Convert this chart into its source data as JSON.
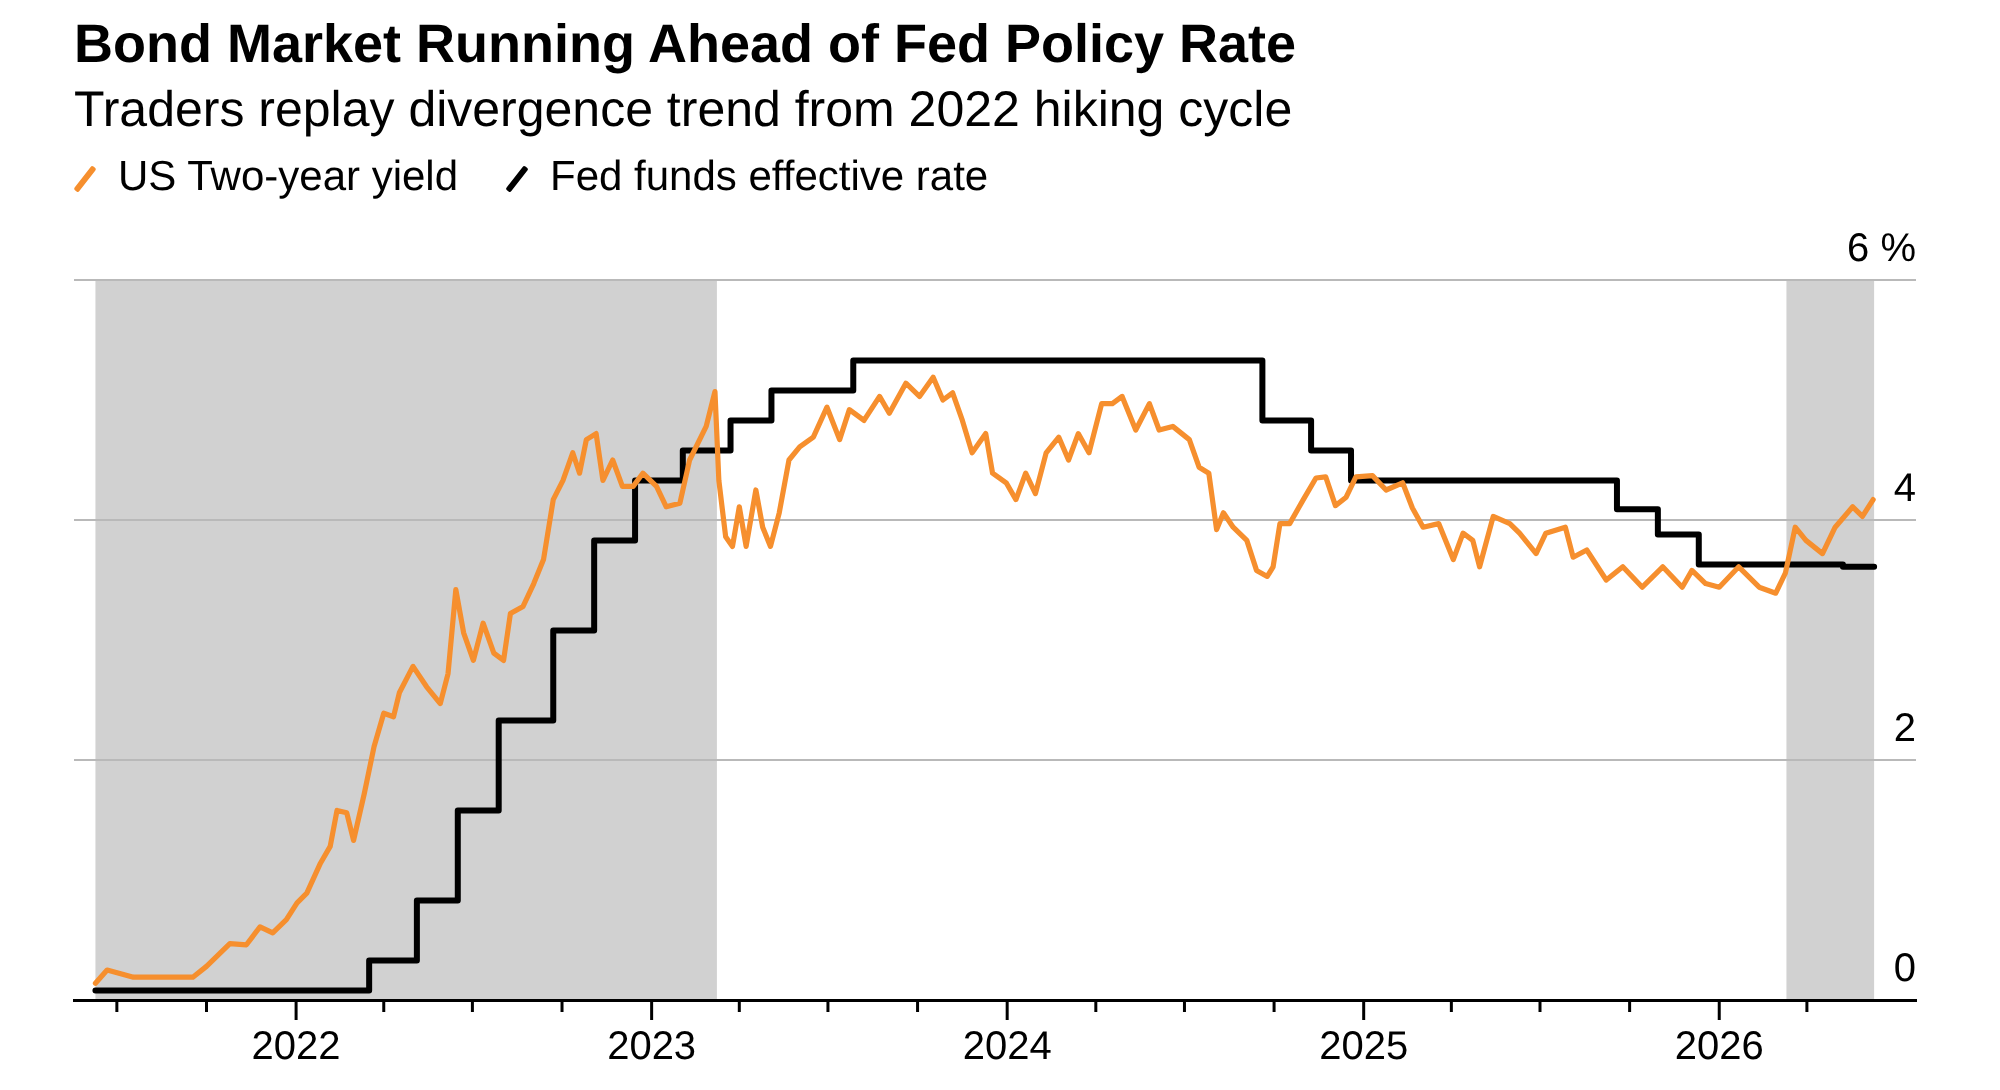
{
  "chart_data": {
    "type": "line",
    "title": "Bond Market Running Ahead of Fed Policy Rate",
    "subtitle": "Traders replay divergence trend from 2022 hiking cycle",
    "xlim": [
      "2021-05-18",
      "2026-07-22"
    ],
    "xticks": [
      {
        "value": "2021-07-01",
        "label": null
      },
      {
        "value": "2021-10-01",
        "label": null
      },
      "2022",
      {
        "value": "2022-04-01",
        "label": null
      },
      {
        "value": "2022-07-01",
        "label": null
      },
      {
        "value": "2022-10-01",
        "label": null
      },
      "2023",
      {
        "value": "2023-04-01",
        "label": null
      },
      {
        "value": "2023-07-01",
        "label": null
      },
      {
        "value": "2023-10-01",
        "label": null
      },
      "2024",
      {
        "value": "2024-04-01",
        "label": null
      },
      {
        "value": "2024-07-01",
        "label": null
      },
      {
        "value": "2024-10-01",
        "label": null
      },
      "2025",
      {
        "value": "2025-04-01",
        "label": null
      },
      {
        "value": "2025-07-01",
        "label": null
      },
      {
        "value": "2025-10-01",
        "label": null
      },
      "2026",
      {
        "value": "2026-04-01",
        "label": null
      }
    ],
    "ylim": [
      0,
      6
    ],
    "yticks": [
      0,
      2,
      4,
      {
        "value": 6,
        "label": "6 %"
      }
    ],
    "grid": "y",
    "legend": "top left",
    "bands": [
      {
        "axis": "x",
        "from": "2021-06-09",
        "to": "2023-03-09",
        "color": "#d1d1d1"
      },
      {
        "axis": "x",
        "from": "2026-03-11",
        "to": "2026-06-09",
        "color": "#d1d1d1"
      }
    ],
    "series": [
      {
        "name": "US Two-year yield",
        "color": "#f68f2e",
        "x": [
          "2021-06-09",
          "2021-06-21",
          "2021-07-18",
          "2021-08-14",
          "2021-09-17",
          "2021-10-01",
          "2021-10-25",
          "2021-11-11",
          "2021-11-25",
          "2021-12-08",
          "2021-12-22",
          "2022-01-02",
          "2022-01-12",
          "2022-01-26",
          "2022-02-05",
          "2022-02-12",
          "2022-02-22",
          "2022-03-01",
          "2022-03-12",
          "2022-03-22",
          "2022-04-01",
          "2022-04-11",
          "2022-04-17",
          "2022-05-01",
          "2022-05-15",
          "2022-05-29",
          "2022-06-06",
          "2022-06-14",
          "2022-06-22",
          "2022-07-02",
          "2022-07-12",
          "2022-07-23",
          "2022-08-02",
          "2022-08-09",
          "2022-08-22",
          "2022-09-02",
          "2022-09-12",
          "2022-09-22",
          "2022-10-02",
          "2022-10-12",
          "2022-10-19",
          "2022-10-26",
          "2022-11-05",
          "2022-11-12",
          "2022-11-22",
          "2022-12-02",
          "2022-12-13",
          "2022-12-23",
          "2023-01-06",
          "2023-01-16",
          "2023-01-30",
          "2023-02-09",
          "2023-02-26",
          "2023-03-07",
          "2023-03-11",
          "2023-03-18",
          "2023-03-25",
          "2023-04-01",
          "2023-04-08",
          "2023-04-18",
          "2023-04-25",
          "2023-05-03",
          "2023-05-12",
          "2023-05-22",
          "2023-06-02",
          "2023-06-16",
          "2023-06-30",
          "2023-07-13",
          "2023-07-23",
          "2023-08-07",
          "2023-08-23",
          "2023-09-02",
          "2023-09-19",
          "2023-10-03",
          "2023-10-17",
          "2023-10-27",
          "2023-11-06",
          "2023-11-16",
          "2023-11-26",
          "2023-12-10",
          "2023-12-17",
          "2023-12-31",
          "2024-01-10",
          "2024-01-20",
          "2024-01-30",
          "2024-02-10",
          "2024-02-23",
          "2024-03-04",
          "2024-03-14",
          "2024-03-25",
          "2024-04-07",
          "2024-04-18",
          "2024-04-28",
          "2024-05-12",
          "2024-05-26",
          "2024-06-05",
          "2024-06-19",
          "2024-07-06",
          "2024-07-16",
          "2024-07-26",
          "2024-08-03",
          "2024-08-10",
          "2024-08-20",
          "2024-09-03",
          "2024-09-13",
          "2024-09-24",
          "2024-09-30",
          "2024-10-07",
          "2024-10-17",
          "2024-10-31",
          "2024-11-13",
          "2024-11-23",
          "2024-12-03",
          "2024-12-14",
          "2024-12-24",
          "2025-01-10",
          "2025-01-24",
          "2025-02-10",
          "2025-02-20",
          "2025-03-03",
          "2025-03-19",
          "2025-04-03",
          "2025-04-13",
          "2025-04-23",
          "2025-04-30",
          "2025-05-14",
          "2025-05-31",
          "2025-06-10",
          "2025-06-27",
          "2025-07-07",
          "2025-07-27",
          "2025-08-04",
          "2025-08-18",
          "2025-09-07",
          "2025-09-24",
          "2025-10-14",
          "2025-11-04",
          "2025-11-24",
          "2025-12-04",
          "2025-12-18",
          "2026-01-01",
          "2026-01-21",
          "2026-02-11",
          "2026-02-28",
          "2026-03-10",
          "2026-03-20",
          "2026-03-31",
          "2026-04-17",
          "2026-04-30",
          "2026-05-18",
          "2026-05-28",
          "2026-06-08"
        ],
        "values": [
          0.14,
          0.25,
          0.19,
          0.19,
          0.19,
          0.28,
          0.47,
          0.46,
          0.61,
          0.56,
          0.67,
          0.81,
          0.89,
          1.14,
          1.28,
          1.58,
          1.56,
          1.33,
          1.72,
          2.11,
          2.39,
          2.36,
          2.56,
          2.78,
          2.61,
          2.47,
          2.72,
          3.42,
          3.06,
          2.83,
          3.14,
          2.89,
          2.83,
          3.22,
          3.28,
          3.47,
          3.67,
          4.17,
          4.33,
          4.56,
          4.39,
          4.67,
          4.72,
          4.33,
          4.5,
          4.28,
          4.28,
          4.39,
          4.28,
          4.11,
          4.14,
          4.5,
          4.78,
          5.07,
          4.33,
          3.86,
          3.78,
          4.11,
          3.78,
          4.25,
          3.94,
          3.78,
          4.06,
          4.5,
          4.61,
          4.69,
          4.94,
          4.67,
          4.92,
          4.83,
          5.03,
          4.89,
          5.14,
          5.03,
          5.19,
          5.0,
          5.06,
          4.83,
          4.56,
          4.72,
          4.39,
          4.31,
          4.17,
          4.39,
          4.22,
          4.56,
          4.69,
          4.5,
          4.72,
          4.56,
          4.97,
          4.97,
          5.03,
          4.75,
          4.97,
          4.75,
          4.78,
          4.67,
          4.44,
          4.39,
          3.92,
          4.06,
          3.94,
          3.83,
          3.58,
          3.53,
          3.61,
          3.97,
          3.97,
          4.17,
          4.35,
          4.36,
          4.12,
          4.19,
          4.36,
          4.37,
          4.25,
          4.31,
          4.1,
          3.94,
          3.97,
          3.67,
          3.89,
          3.83,
          3.61,
          4.03,
          3.97,
          3.89,
          3.72,
          3.89,
          3.94,
          3.69,
          3.75,
          3.5,
          3.61,
          3.44,
          3.61,
          3.44,
          3.58,
          3.47,
          3.44,
          3.61,
          3.44,
          3.39,
          3.56,
          3.94,
          3.83,
          3.72,
          3.94,
          4.11,
          4.03,
          4.17
        ]
      },
      {
        "name": "Fed funds effective rate",
        "type": "step",
        "color": "#000000",
        "x": [
          "2021-06-09",
          "2022-03-17",
          "2022-05-05",
          "2022-06-16",
          "2022-07-28",
          "2022-09-22",
          "2022-11-03",
          "2022-12-15",
          "2023-02-02",
          "2023-03-23",
          "2023-05-04",
          "2023-07-27",
          "2024-09-19",
          "2024-11-08",
          "2024-12-19",
          "2025-09-18",
          "2025-10-30",
          "2025-12-11",
          "2026-05-08",
          "2026-06-09"
        ],
        "values": [
          0.08,
          0.33,
          0.83,
          1.58,
          2.33,
          3.08,
          3.83,
          4.33,
          4.58,
          4.83,
          5.08,
          5.33,
          4.83,
          4.58,
          4.33,
          4.09,
          3.88,
          3.63,
          3.61,
          3.61
        ]
      }
    ]
  }
}
